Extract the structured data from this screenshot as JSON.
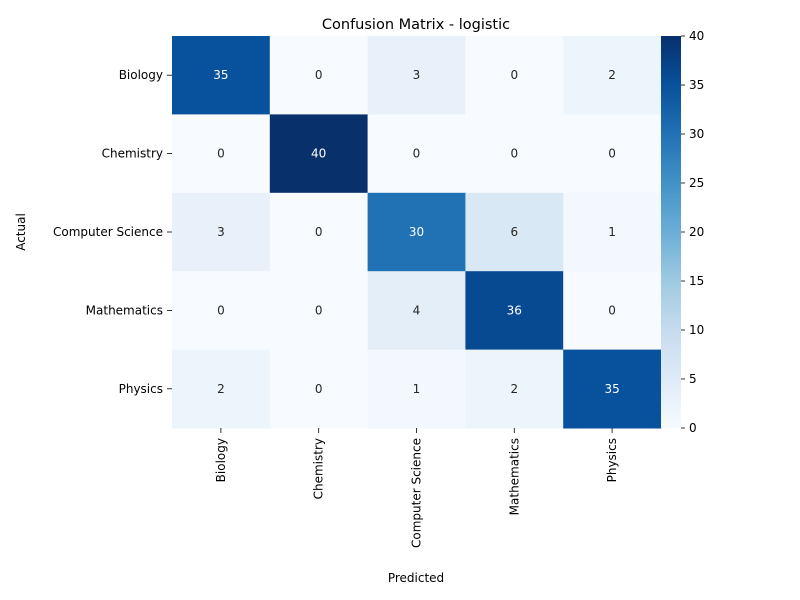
{
  "chart_data": {
    "type": "heatmap",
    "title": "Confusion Matrix - logistic",
    "xlabel": "Predicted",
    "ylabel": "Actual",
    "x_categories": [
      "Biology",
      "Chemistry",
      "Computer Science",
      "Mathematics",
      "Physics"
    ],
    "y_categories": [
      "Biology",
      "Chemistry",
      "Computer Science",
      "Mathematics",
      "Physics"
    ],
    "values": [
      [
        35,
        0,
        3,
        0,
        2
      ],
      [
        0,
        40,
        0,
        0,
        0
      ],
      [
        3,
        0,
        30,
        6,
        1
      ],
      [
        0,
        0,
        4,
        36,
        0
      ],
      [
        2,
        0,
        1,
        2,
        35
      ]
    ],
    "colorbar": {
      "min": 0,
      "max": 40,
      "ticks": [
        0,
        5,
        10,
        15,
        20,
        25,
        30,
        35,
        40
      ],
      "colormap": "Blues"
    },
    "annotate": true
  }
}
